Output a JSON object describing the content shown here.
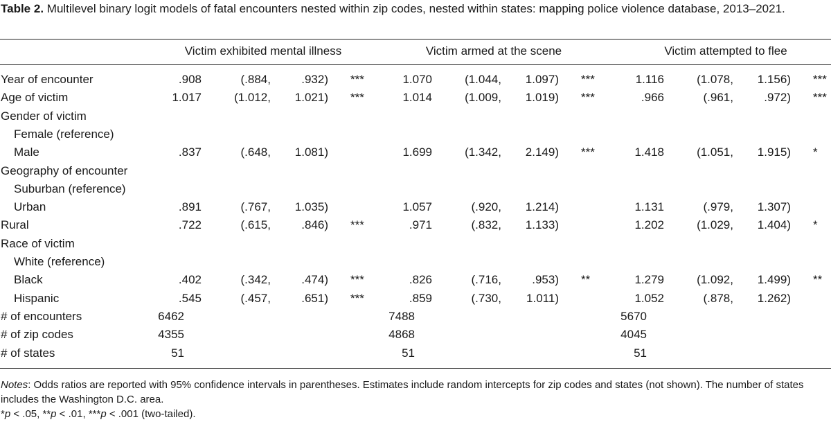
{
  "caption": {
    "label": "Table 2.",
    "text": "Multilevel binary logit models of fatal encounters nested within zip codes, nested within states: mapping police violence database, 2013–2021."
  },
  "columns": [
    "Victim exhibited mental illness",
    "Victim armed at the scene",
    "Victim attempted to flee"
  ],
  "rows": [
    {
      "label": "Year of encounter",
      "indent": false,
      "models": [
        {
          "or": ".908",
          "lo": "(.884,",
          "hi": ".932)",
          "sig": "***"
        },
        {
          "or": "1.070",
          "lo": "(1.044,",
          "hi": "1.097)",
          "sig": "***"
        },
        {
          "or": "1.116",
          "lo": "(1.078,",
          "hi": "1.156)",
          "sig": "***"
        }
      ]
    },
    {
      "label": "Age of victim",
      "indent": false,
      "models": [
        {
          "or": "1.017",
          "lo": "(1.012,",
          "hi": "1.021)",
          "sig": "***"
        },
        {
          "or": "1.014",
          "lo": "(1.009,",
          "hi": "1.019)",
          "sig": "***"
        },
        {
          "or": ".966",
          "lo": "(.961,",
          "hi": ".972)",
          "sig": "***"
        }
      ]
    },
    {
      "label": "Gender of victim",
      "indent": false,
      "models": []
    },
    {
      "label": "Female (reference)",
      "indent": true,
      "models": []
    },
    {
      "label": "Male",
      "indent": true,
      "models": [
        {
          "or": ".837",
          "lo": "(.648,",
          "hi": "1.081)",
          "sig": ""
        },
        {
          "or": "1.699",
          "lo": "(1.342,",
          "hi": "2.149)",
          "sig": "***"
        },
        {
          "or": "1.418",
          "lo": "(1.051,",
          "hi": "1.915)",
          "sig": "*"
        }
      ]
    },
    {
      "label": "Geography of encounter",
      "indent": false,
      "models": []
    },
    {
      "label": "Suburban (reference)",
      "indent": true,
      "models": []
    },
    {
      "label": "Urban",
      "indent": true,
      "models": [
        {
          "or": ".891",
          "lo": "(.767,",
          "hi": "1.035)",
          "sig": ""
        },
        {
          "or": "1.057",
          "lo": "(.920,",
          "hi": "1.214)",
          "sig": ""
        },
        {
          "or": "1.131",
          "lo": "(.979,",
          "hi": "1.307)",
          "sig": ""
        }
      ]
    },
    {
      "label": "Rural",
      "indent": false,
      "models": [
        {
          "or": ".722",
          "lo": "(.615,",
          "hi": ".846)",
          "sig": "***"
        },
        {
          "or": ".971",
          "lo": "(.832,",
          "hi": "1.133)",
          "sig": ""
        },
        {
          "or": "1.202",
          "lo": "(1.029,",
          "hi": "1.404)",
          "sig": "*"
        }
      ]
    },
    {
      "label": "Race of victim",
      "indent": false,
      "models": []
    },
    {
      "label": "White (reference)",
      "indent": true,
      "models": []
    },
    {
      "label": "Black",
      "indent": true,
      "models": [
        {
          "or": ".402",
          "lo": "(.342,",
          "hi": ".474)",
          "sig": "***"
        },
        {
          "or": ".826",
          "lo": "(.716,",
          "hi": ".953)",
          "sig": "**"
        },
        {
          "or": "1.279",
          "lo": "(1.092,",
          "hi": "1.499)",
          "sig": "**"
        }
      ]
    },
    {
      "label": "Hispanic",
      "indent": true,
      "models": [
        {
          "or": ".545",
          "lo": "(.457,",
          "hi": ".651)",
          "sig": "***"
        },
        {
          "or": ".859",
          "lo": "(.730,",
          "hi": "1.011)",
          "sig": ""
        },
        {
          "or": "1.052",
          "lo": "(.878,",
          "hi": "1.262)",
          "sig": ""
        }
      ]
    }
  ],
  "counts": [
    {
      "label": "# of encounters",
      "values": [
        "6462",
        "7488",
        "5670"
      ]
    },
    {
      "label": "# of zip codes",
      "values": [
        "4355",
        "4868",
        "4045"
      ]
    },
    {
      "label": "# of states",
      "values": [
        "51",
        "51",
        "51"
      ]
    }
  ],
  "notes": {
    "prefix": "Notes",
    "line1": ": Odds ratios are reported with 95% confidence intervals in parentheses. Estimates include random intercepts for zip codes and states (not shown). The number of states includes the Washington D.C. area.",
    "sig1_star": "*",
    "sig1_p": "p",
    "sig1_rest": " < .05, ",
    "sig2_star": "**",
    "sig2_p": "p",
    "sig2_rest": " < .01, ",
    "sig3_star": "***",
    "sig3_p": "p",
    "sig3_rest": " < .001 (two-tailed)."
  }
}
